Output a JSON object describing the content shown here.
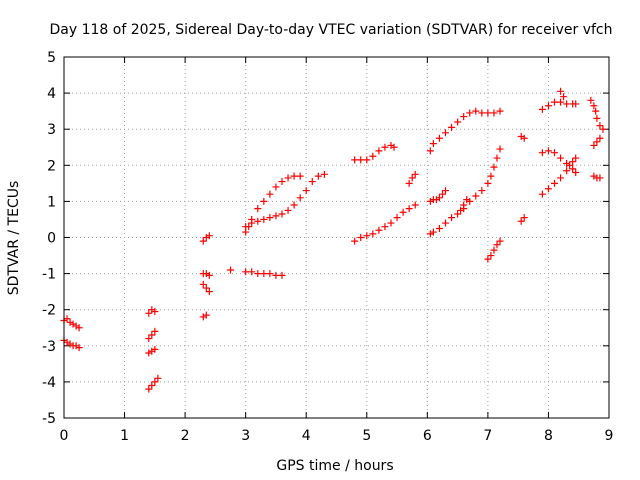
{
  "chart_data": {
    "type": "scatter",
    "title": "Day 118 of 2025, Sidereal Day-to-day VTEC variation (SDTVAR) for receiver vfch",
    "xlabel": "GPS time / hours",
    "ylabel": "SDTVAR / TECUs",
    "xlim": [
      0,
      9
    ],
    "ylim": [
      -5,
      5
    ],
    "xticks": [
      0,
      1,
      2,
      3,
      4,
      5,
      6,
      7,
      8,
      9
    ],
    "yticks": [
      -5,
      -4,
      -3,
      -2,
      -1,
      0,
      1,
      2,
      3,
      4,
      5
    ],
    "grid": true,
    "legend": "none",
    "marker": "plus",
    "colors": {
      "series": "#ff0000",
      "axis": "#000000",
      "grid": "#a0a0a0"
    },
    "series": [
      {
        "name": "SDTVAR",
        "points": [
          [
            0.0,
            -2.3
          ],
          [
            0.05,
            -2.25
          ],
          [
            0.1,
            -2.35
          ],
          [
            0.15,
            -2.4
          ],
          [
            0.2,
            -2.45
          ],
          [
            0.25,
            -2.5
          ],
          [
            0.0,
            -2.85
          ],
          [
            0.05,
            -2.9
          ],
          [
            0.1,
            -2.95
          ],
          [
            0.15,
            -3.0
          ],
          [
            0.2,
            -3.0
          ],
          [
            0.25,
            -3.05
          ],
          [
            1.4,
            -2.1
          ],
          [
            1.45,
            -2.0
          ],
          [
            1.5,
            -2.05
          ],
          [
            1.4,
            -2.8
          ],
          [
            1.45,
            -2.7
          ],
          [
            1.5,
            -2.6
          ],
          [
            1.4,
            -3.2
          ],
          [
            1.45,
            -3.15
          ],
          [
            1.5,
            -3.1
          ],
          [
            1.4,
            -4.2
          ],
          [
            1.45,
            -4.1
          ],
          [
            1.5,
            -4.0
          ],
          [
            1.55,
            -3.9
          ],
          [
            2.3,
            -0.1
          ],
          [
            2.35,
            0.0
          ],
          [
            2.4,
            0.05
          ],
          [
            2.3,
            -1.0
          ],
          [
            2.35,
            -1.0
          ],
          [
            2.4,
            -1.05
          ],
          [
            2.3,
            -1.3
          ],
          [
            2.35,
            -1.4
          ],
          [
            2.4,
            -1.5
          ],
          [
            2.3,
            -2.2
          ],
          [
            2.35,
            -2.15
          ],
          [
            2.75,
            -0.9
          ],
          [
            3.0,
            -0.95
          ],
          [
            3.1,
            -0.95
          ],
          [
            3.2,
            -1.0
          ],
          [
            3.3,
            -1.0
          ],
          [
            3.4,
            -1.0
          ],
          [
            3.5,
            -1.05
          ],
          [
            3.6,
            -1.05
          ],
          [
            3.0,
            0.15
          ],
          [
            3.05,
            0.3
          ],
          [
            3.1,
            0.5
          ],
          [
            3.2,
            0.8
          ],
          [
            3.3,
            1.0
          ],
          [
            3.4,
            1.2
          ],
          [
            3.5,
            1.4
          ],
          [
            3.6,
            1.55
          ],
          [
            3.7,
            1.65
          ],
          [
            3.8,
            1.7
          ],
          [
            3.9,
            1.7
          ],
          [
            3.0,
            0.3
          ],
          [
            3.1,
            0.4
          ],
          [
            3.2,
            0.45
          ],
          [
            3.3,
            0.5
          ],
          [
            3.4,
            0.55
          ],
          [
            3.5,
            0.6
          ],
          [
            3.6,
            0.65
          ],
          [
            3.7,
            0.75
          ],
          [
            3.8,
            0.9
          ],
          [
            3.9,
            1.1
          ],
          [
            4.0,
            1.3
          ],
          [
            4.1,
            1.55
          ],
          [
            4.2,
            1.7
          ],
          [
            4.3,
            1.75
          ],
          [
            4.8,
            2.15
          ],
          [
            4.9,
            2.15
          ],
          [
            5.0,
            2.15
          ],
          [
            5.1,
            2.25
          ],
          [
            5.2,
            2.4
          ],
          [
            5.3,
            2.5
          ],
          [
            5.4,
            2.55
          ],
          [
            5.45,
            2.5
          ],
          [
            4.8,
            -0.1
          ],
          [
            4.9,
            0.0
          ],
          [
            5.0,
            0.05
          ],
          [
            5.1,
            0.1
          ],
          [
            5.2,
            0.2
          ],
          [
            5.3,
            0.3
          ],
          [
            5.4,
            0.4
          ],
          [
            5.5,
            0.55
          ],
          [
            5.6,
            0.7
          ],
          [
            5.7,
            0.8
          ],
          [
            5.8,
            0.9
          ],
          [
            5.7,
            1.5
          ],
          [
            5.75,
            1.65
          ],
          [
            5.8,
            1.75
          ],
          [
            6.05,
            2.4
          ],
          [
            6.1,
            2.6
          ],
          [
            6.2,
            2.75
          ],
          [
            6.3,
            2.9
          ],
          [
            6.4,
            3.05
          ],
          [
            6.5,
            3.2
          ],
          [
            6.6,
            3.35
          ],
          [
            6.7,
            3.45
          ],
          [
            6.8,
            3.5
          ],
          [
            6.9,
            3.45
          ],
          [
            7.0,
            3.45
          ],
          [
            7.1,
            3.45
          ],
          [
            7.2,
            3.5
          ],
          [
            6.05,
            1.0
          ],
          [
            6.1,
            1.05
          ],
          [
            6.15,
            1.05
          ],
          [
            6.2,
            1.1
          ],
          [
            6.25,
            1.2
          ],
          [
            6.3,
            1.3
          ],
          [
            6.05,
            0.1
          ],
          [
            6.1,
            0.15
          ],
          [
            6.2,
            0.25
          ],
          [
            6.3,
            0.4
          ],
          [
            6.4,
            0.55
          ],
          [
            6.5,
            0.65
          ],
          [
            6.6,
            0.8
          ],
          [
            6.7,
            1.0
          ],
          [
            6.8,
            1.15
          ],
          [
            6.9,
            1.3
          ],
          [
            7.0,
            1.5
          ],
          [
            7.05,
            1.7
          ],
          [
            7.1,
            1.95
          ],
          [
            7.15,
            2.2
          ],
          [
            7.2,
            2.45
          ],
          [
            6.55,
            0.75
          ],
          [
            6.6,
            0.9
          ],
          [
            6.65,
            1.05
          ],
          [
            7.0,
            -0.6
          ],
          [
            7.05,
            -0.5
          ],
          [
            7.1,
            -0.35
          ],
          [
            7.15,
            -0.2
          ],
          [
            7.2,
            -0.1
          ],
          [
            7.55,
            2.8
          ],
          [
            7.6,
            2.75
          ],
          [
            7.55,
            0.45
          ],
          [
            7.6,
            0.55
          ],
          [
            7.9,
            1.2
          ],
          [
            8.0,
            1.35
          ],
          [
            8.1,
            1.5
          ],
          [
            8.2,
            1.65
          ],
          [
            8.3,
            1.85
          ],
          [
            8.35,
            2.0
          ],
          [
            8.4,
            2.1
          ],
          [
            8.45,
            2.2
          ],
          [
            7.9,
            2.35
          ],
          [
            8.0,
            2.4
          ],
          [
            8.1,
            2.35
          ],
          [
            8.2,
            2.2
          ],
          [
            8.3,
            2.05
          ],
          [
            8.4,
            1.9
          ],
          [
            8.45,
            1.8
          ],
          [
            7.9,
            3.55
          ],
          [
            8.0,
            3.65
          ],
          [
            8.1,
            3.75
          ],
          [
            8.2,
            3.75
          ],
          [
            8.3,
            3.7
          ],
          [
            8.4,
            3.7
          ],
          [
            8.45,
            3.7
          ],
          [
            8.2,
            4.05
          ],
          [
            8.25,
            3.9
          ],
          [
            8.75,
            1.7
          ],
          [
            8.8,
            1.65
          ],
          [
            8.85,
            1.65
          ],
          [
            8.75,
            2.55
          ],
          [
            8.8,
            2.65
          ],
          [
            8.85,
            2.75
          ],
          [
            8.7,
            3.8
          ],
          [
            8.75,
            3.65
          ],
          [
            8.78,
            3.5
          ],
          [
            8.8,
            3.3
          ],
          [
            8.85,
            3.1
          ],
          [
            8.9,
            3.0
          ]
        ]
      }
    ]
  }
}
